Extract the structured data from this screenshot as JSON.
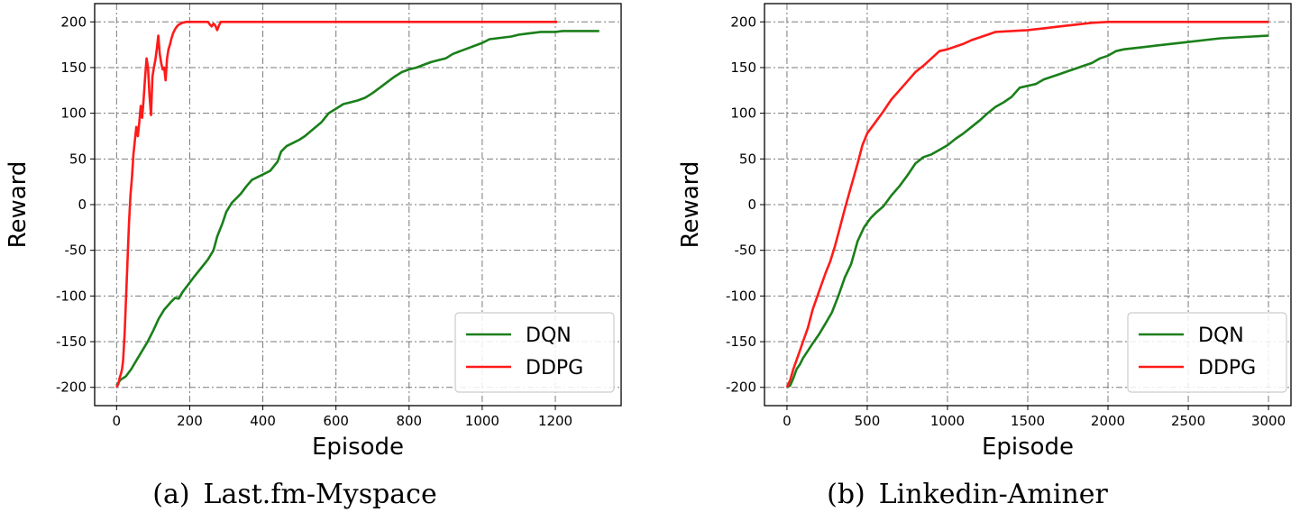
{
  "chart_data": [
    {
      "type": "line",
      "caption": "(a) Last.fm-Myspace",
      "xlabel": "Episode",
      "ylabel": "Reward",
      "xlim": [
        -60,
        1380
      ],
      "ylim": [
        -220,
        220
      ],
      "xticks": [
        0,
        200,
        400,
        600,
        800,
        1000,
        1200
      ],
      "yticks": [
        -200,
        -150,
        -100,
        -50,
        0,
        50,
        100,
        150,
        200
      ],
      "grid": true,
      "legend_position": "lower-right",
      "series": [
        {
          "name": "DQN",
          "color": "#1a7f1a",
          "points": [
            [
              0,
              -198
            ],
            [
              10,
              -192
            ],
            [
              25,
              -188
            ],
            [
              40,
              -180
            ],
            [
              55,
              -170
            ],
            [
              70,
              -160
            ],
            [
              85,
              -150
            ],
            [
              100,
              -138
            ],
            [
              115,
              -125
            ],
            [
              130,
              -115
            ],
            [
              150,
              -106
            ],
            [
              160,
              -102
            ],
            [
              170,
              -103
            ],
            [
              180,
              -96
            ],
            [
              195,
              -88
            ],
            [
              210,
              -80
            ],
            [
              230,
              -70
            ],
            [
              250,
              -60
            ],
            [
              265,
              -50
            ],
            [
              275,
              -35
            ],
            [
              290,
              -20
            ],
            [
              300,
              -8
            ],
            [
              315,
              2
            ],
            [
              330,
              8
            ],
            [
              340,
              12
            ],
            [
              355,
              20
            ],
            [
              370,
              27
            ],
            [
              385,
              30
            ],
            [
              400,
              33
            ],
            [
              420,
              37
            ],
            [
              440,
              47
            ],
            [
              450,
              58
            ],
            [
              465,
              64
            ],
            [
              480,
              67
            ],
            [
              500,
              71
            ],
            [
              515,
              75
            ],
            [
              530,
              80
            ],
            [
              545,
              85
            ],
            [
              560,
              90
            ],
            [
              580,
              100
            ],
            [
              600,
              105
            ],
            [
              620,
              110
            ],
            [
              640,
              112
            ],
            [
              660,
              114
            ],
            [
              680,
              117
            ],
            [
              700,
              122
            ],
            [
              720,
              128
            ],
            [
              740,
              134
            ],
            [
              760,
              140
            ],
            [
              780,
              145
            ],
            [
              800,
              148
            ],
            [
              820,
              150
            ],
            [
              840,
              153
            ],
            [
              860,
              156
            ],
            [
              880,
              158
            ],
            [
              900,
              160
            ],
            [
              920,
              165
            ],
            [
              940,
              168
            ],
            [
              960,
              171
            ],
            [
              980,
              174
            ],
            [
              1000,
              177
            ],
            [
              1020,
              181
            ],
            [
              1040,
              182
            ],
            [
              1060,
              183
            ],
            [
              1080,
              184
            ],
            [
              1100,
              186
            ],
            [
              1120,
              187
            ],
            [
              1140,
              188
            ],
            [
              1160,
              189
            ],
            [
              1180,
              189
            ],
            [
              1200,
              189
            ],
            [
              1220,
              190
            ],
            [
              1260,
              190
            ],
            [
              1300,
              190
            ],
            [
              1320,
              190
            ]
          ]
        },
        {
          "name": "DDPG",
          "color": "#ff1a1a",
          "points": [
            [
              0,
              -200
            ],
            [
              5,
              -196
            ],
            [
              8,
              -190
            ],
            [
              12,
              -185
            ],
            [
              15,
              -180
            ],
            [
              18,
              -170
            ],
            [
              22,
              -140
            ],
            [
              26,
              -100
            ],
            [
              30,
              -60
            ],
            [
              34,
              -20
            ],
            [
              38,
              10
            ],
            [
              42,
              30
            ],
            [
              46,
              55
            ],
            [
              50,
              70
            ],
            [
              54,
              85
            ],
            [
              58,
              75
            ],
            [
              62,
              90
            ],
            [
              66,
              108
            ],
            [
              70,
              95
            ],
            [
              74,
              115
            ],
            [
              78,
              140
            ],
            [
              82,
              160
            ],
            [
              86,
              150
            ],
            [
              90,
              120
            ],
            [
              94,
              98
            ],
            [
              98,
              140
            ],
            [
              102,
              150
            ],
            [
              106,
              158
            ],
            [
              110,
              170
            ],
            [
              114,
              185
            ],
            [
              118,
              165
            ],
            [
              122,
              155
            ],
            [
              126,
              148
            ],
            [
              130,
              150
            ],
            [
              134,
              136
            ],
            [
              138,
              160
            ],
            [
              142,
              170
            ],
            [
              146,
              175
            ],
            [
              150,
              182
            ],
            [
              155,
              188
            ],
            [
              160,
              192
            ],
            [
              165,
              195
            ],
            [
              170,
              197
            ],
            [
              180,
              199
            ],
            [
              190,
              200
            ],
            [
              200,
              200
            ],
            [
              230,
              200
            ],
            [
              250,
              200
            ],
            [
              255,
              197
            ],
            [
              260,
              195
            ],
            [
              265,
              198
            ],
            [
              270,
              196
            ],
            [
              275,
              191
            ],
            [
              280,
              196
            ],
            [
              285,
              200
            ],
            [
              300,
              200
            ],
            [
              400,
              200
            ],
            [
              600,
              200
            ],
            [
              800,
              200
            ],
            [
              1000,
              200
            ],
            [
              1200,
              200
            ],
            [
              1205,
              200
            ]
          ]
        }
      ]
    },
    {
      "type": "line",
      "caption": "(b) Linkedin-Aminer",
      "xlabel": "Episode",
      "ylabel": "Reward",
      "xlim": [
        -140,
        3140
      ],
      "ylim": [
        -220,
        220
      ],
      "xticks": [
        0,
        500,
        1000,
        1500,
        2000,
        2500,
        3000
      ],
      "yticks": [
        -200,
        -150,
        -100,
        -50,
        0,
        50,
        100,
        150,
        200
      ],
      "grid": true,
      "legend_position": "lower-right",
      "series": [
        {
          "name": "DQN",
          "color": "#1a7f1a",
          "points": [
            [
              0,
              -200
            ],
            [
              20,
              -198
            ],
            [
              40,
              -190
            ],
            [
              60,
              -180
            ],
            [
              80,
              -175
            ],
            [
              100,
              -168
            ],
            [
              130,
              -160
            ],
            [
              160,
              -152
            ],
            [
              200,
              -142
            ],
            [
              240,
              -130
            ],
            [
              280,
              -118
            ],
            [
              320,
              -100
            ],
            [
              360,
              -80
            ],
            [
              400,
              -65
            ],
            [
              440,
              -40
            ],
            [
              480,
              -25
            ],
            [
              520,
              -15
            ],
            [
              560,
              -8
            ],
            [
              600,
              -2
            ],
            [
              650,
              10
            ],
            [
              700,
              20
            ],
            [
              750,
              32
            ],
            [
              800,
              45
            ],
            [
              850,
              52
            ],
            [
              900,
              55
            ],
            [
              950,
              60
            ],
            [
              1000,
              65
            ],
            [
              1050,
              72
            ],
            [
              1100,
              78
            ],
            [
              1150,
              85
            ],
            [
              1200,
              92
            ],
            [
              1250,
              100
            ],
            [
              1300,
              107
            ],
            [
              1350,
              112
            ],
            [
              1400,
              118
            ],
            [
              1450,
              128
            ],
            [
              1500,
              130
            ],
            [
              1550,
              132
            ],
            [
              1600,
              137
            ],
            [
              1650,
              140
            ],
            [
              1700,
              143
            ],
            [
              1750,
              146
            ],
            [
              1800,
              149
            ],
            [
              1850,
              152
            ],
            [
              1900,
              155
            ],
            [
              1950,
              160
            ],
            [
              2000,
              163
            ],
            [
              2050,
              168
            ],
            [
              2100,
              170
            ],
            [
              2150,
              171
            ],
            [
              2200,
              172
            ],
            [
              2300,
              174
            ],
            [
              2400,
              176
            ],
            [
              2500,
              178
            ],
            [
              2600,
              180
            ],
            [
              2700,
              182
            ],
            [
              2800,
              183
            ],
            [
              2900,
              184
            ],
            [
              3000,
              185
            ]
          ]
        },
        {
          "name": "DDPG",
          "color": "#ff1a1a",
          "points": [
            [
              0,
              -200
            ],
            [
              20,
              -192
            ],
            [
              40,
              -180
            ],
            [
              60,
              -170
            ],
            [
              80,
              -160
            ],
            [
              100,
              -150
            ],
            [
              130,
              -135
            ],
            [
              160,
              -115
            ],
            [
              200,
              -95
            ],
            [
              240,
              -75
            ],
            [
              270,
              -62
            ],
            [
              300,
              -45
            ],
            [
              330,
              -25
            ],
            [
              360,
              -5
            ],
            [
              400,
              20
            ],
            [
              440,
              45
            ],
            [
              470,
              65
            ],
            [
              500,
              78
            ],
            [
              550,
              90
            ],
            [
              600,
              102
            ],
            [
              650,
              115
            ],
            [
              700,
              125
            ],
            [
              750,
              135
            ],
            [
              800,
              145
            ],
            [
              850,
              152
            ],
            [
              900,
              160
            ],
            [
              950,
              168
            ],
            [
              1000,
              170
            ],
            [
              1050,
              173
            ],
            [
              1100,
              176
            ],
            [
              1150,
              180
            ],
            [
              1200,
              183
            ],
            [
              1250,
              186
            ],
            [
              1300,
              189
            ],
            [
              1400,
              190
            ],
            [
              1500,
              191
            ],
            [
              1600,
              193
            ],
            [
              1700,
              195
            ],
            [
              1800,
              197
            ],
            [
              1900,
              199
            ],
            [
              2000,
              200
            ],
            [
              2200,
              200
            ],
            [
              2500,
              200
            ],
            [
              3000,
              200
            ]
          ]
        }
      ]
    }
  ]
}
